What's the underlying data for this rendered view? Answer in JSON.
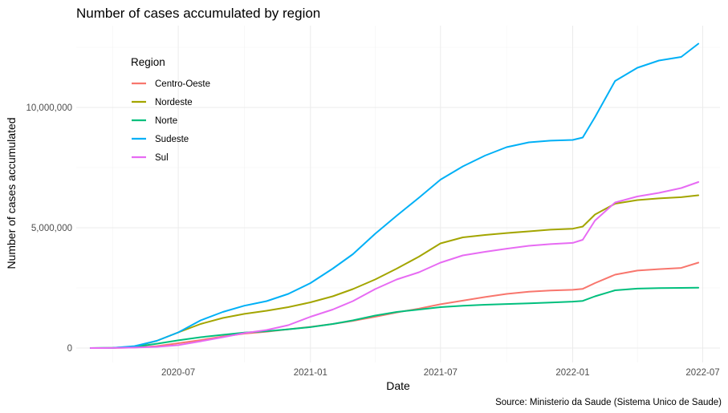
{
  "chart_data": {
    "type": "line",
    "title": "Number of cases accumulated by region",
    "xlabel": "Date",
    "ylabel": "Number of cases accumulated",
    "caption": "Source: Ministerio da Saude (Sistema Unico de Saude)",
    "legend_title": "Region",
    "legend_position": "top-left",
    "grid": true,
    "x_ticks": [
      "2020-07",
      "2021-01",
      "2021-07",
      "2022-01",
      "2022-07"
    ],
    "y_ticks": [
      0,
      5000000,
      10000000
    ],
    "y_tick_labels": [
      "0",
      "5,000,000",
      "10,000,000"
    ],
    "xlim": [
      "2020-02-10",
      "2022-07-25"
    ],
    "ylim": [
      -600000,
      13400000
    ],
    "x": [
      "2020-03-01",
      "2020-04-01",
      "2020-05-01",
      "2020-06-01",
      "2020-07-01",
      "2020-08-01",
      "2020-09-01",
      "2020-10-01",
      "2020-11-01",
      "2020-12-01",
      "2021-01-01",
      "2021-02-01",
      "2021-03-01",
      "2021-04-01",
      "2021-05-01",
      "2021-06-01",
      "2021-07-01",
      "2021-08-01",
      "2021-09-01",
      "2021-10-01",
      "2021-11-01",
      "2021-12-01",
      "2022-01-01",
      "2022-01-15",
      "2022-02-01",
      "2022-03-01",
      "2022-04-01",
      "2022-05-01",
      "2022-06-01",
      "2022-06-25"
    ],
    "series": [
      {
        "name": "Centro-Oeste",
        "color": "#F8766D",
        "values": [
          0,
          5000,
          20000,
          80000,
          200000,
          330000,
          480000,
          600000,
          680000,
          780000,
          880000,
          1000000,
          1130000,
          1300000,
          1480000,
          1640000,
          1820000,
          1970000,
          2120000,
          2250000,
          2340000,
          2390000,
          2420000,
          2460000,
          2700000,
          3050000,
          3220000,
          3280000,
          3330000,
          3550000
        ]
      },
      {
        "name": "Nordeste",
        "color": "#A3A500",
        "values": [
          0,
          10000,
          60000,
          300000,
          650000,
          1000000,
          1250000,
          1420000,
          1550000,
          1700000,
          1900000,
          2150000,
          2450000,
          2850000,
          3300000,
          3800000,
          4350000,
          4600000,
          4700000,
          4780000,
          4850000,
          4920000,
          4960000,
          5050000,
          5550000,
          6000000,
          6150000,
          6220000,
          6270000,
          6350000
        ]
      },
      {
        "name": "Norte",
        "color": "#00BF7D",
        "values": [
          0,
          10000,
          50000,
          180000,
          320000,
          450000,
          550000,
          640000,
          700000,
          780000,
          870000,
          1000000,
          1150000,
          1350000,
          1500000,
          1600000,
          1700000,
          1760000,
          1800000,
          1830000,
          1860000,
          1890000,
          1930000,
          1960000,
          2150000,
          2400000,
          2470000,
          2490000,
          2500000,
          2510000
        ]
      },
      {
        "name": "Sudeste",
        "color": "#00B0F6",
        "values": [
          0,
          10000,
          80000,
          300000,
          650000,
          1150000,
          1500000,
          1760000,
          1950000,
          2250000,
          2700000,
          3300000,
          3900000,
          4750000,
          5500000,
          6250000,
          7000000,
          7550000,
          8000000,
          8350000,
          8550000,
          8620000,
          8650000,
          8750000,
          9600000,
          11100000,
          11650000,
          11950000,
          12100000,
          12650000
        ]
      },
      {
        "name": "Sul",
        "color": "#E76BF3",
        "values": [
          0,
          5000,
          20000,
          50000,
          120000,
          280000,
          450000,
          620000,
          750000,
          950000,
          1300000,
          1600000,
          1950000,
          2450000,
          2850000,
          3150000,
          3550000,
          3850000,
          4000000,
          4130000,
          4250000,
          4320000,
          4370000,
          4500000,
          5300000,
          6050000,
          6300000,
          6450000,
          6650000,
          6900000
        ]
      }
    ]
  }
}
